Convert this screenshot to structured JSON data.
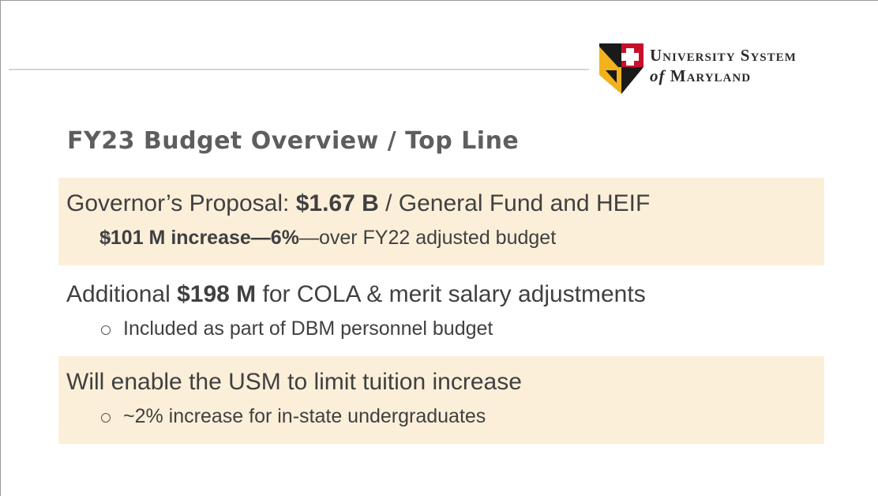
{
  "logo": {
    "line1": "University System",
    "line2_italic": "of",
    "line2": "Maryland"
  },
  "title": "FY23 Budget Overview / Top Line",
  "blocks": [
    {
      "main": [
        {
          "text": "Governor’s Proposal: "
        },
        {
          "text": "$1.67 B",
          "bold": true
        },
        {
          "text": " / General Fund and HEIF"
        }
      ],
      "sub": [
        {
          "text": "$101 M increase—6%",
          "bold": true
        },
        {
          "text": "—over FY22 adjusted budget"
        }
      ],
      "shaded": true
    },
    {
      "main": [
        {
          "text": "Additional "
        },
        {
          "text": "$198 M",
          "bold": true
        },
        {
          "text": " for COLA & merit salary adjustments"
        }
      ],
      "sub": [
        {
          "text": "Included as part of DBM personnel budget"
        }
      ],
      "shaded": false
    },
    {
      "main": [
        {
          "text": "Will enable the USM to limit tuition increase"
        }
      ],
      "sub": [
        {
          "text": "~2% increase for in-state undergraduates"
        }
      ],
      "shaded": true
    }
  ]
}
